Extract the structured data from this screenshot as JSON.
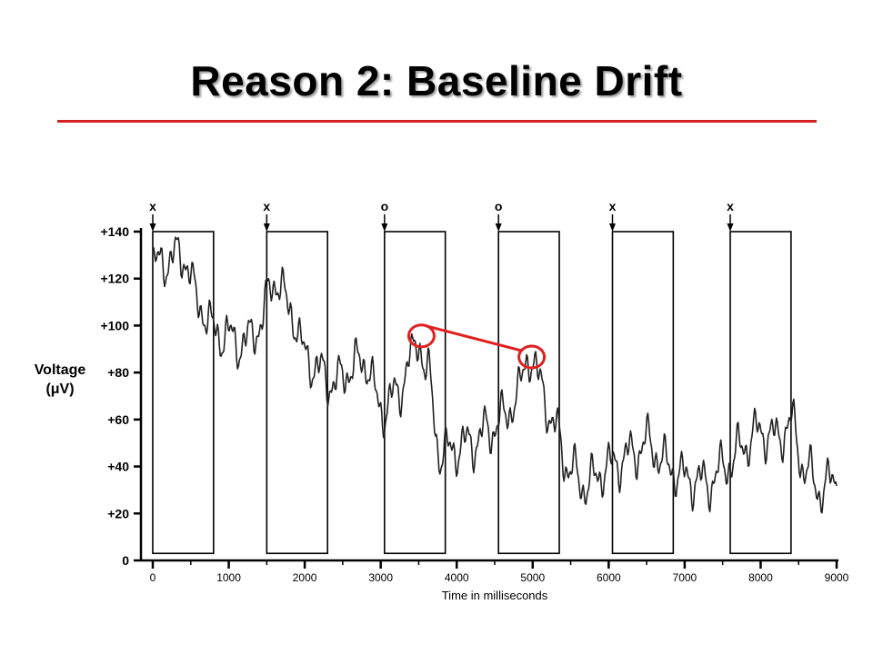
{
  "slide": {
    "title": "Reason 2: Baseline Drift",
    "accent_color": "#d21f1f"
  },
  "chart_data": {
    "type": "line",
    "xlabel": "Time in milliseconds",
    "ylabel_line1": "Voltage",
    "ylabel_line2": "(μV)",
    "xlim": [
      0,
      9000
    ],
    "ylim": [
      0,
      140
    ],
    "x_ticks": [
      0,
      1000,
      2000,
      3000,
      4000,
      5000,
      6000,
      7000,
      8000,
      9000
    ],
    "y_ticks": [
      {
        "value": 0,
        "label": "0"
      },
      {
        "value": 20,
        "label": "+20"
      },
      {
        "value": 40,
        "label": "+40"
      },
      {
        "value": 60,
        "label": "+60"
      },
      {
        "value": 80,
        "label": "+80"
      },
      {
        "value": 100,
        "label": "+100"
      },
      {
        "value": 120,
        "label": "+120"
      },
      {
        "value": 140,
        "label": "+140"
      }
    ],
    "stimulus_markers": [
      {
        "label": "x",
        "time": 0
      },
      {
        "label": "x",
        "time": 1500
      },
      {
        "label": "o",
        "time": 3050
      },
      {
        "label": "o",
        "time": 4550
      },
      {
        "label": "x",
        "time": 6050
      },
      {
        "label": "x",
        "time": 7600
      }
    ],
    "epochs": [
      {
        "start": 0,
        "end": 800
      },
      {
        "start": 1500,
        "end": 2300
      },
      {
        "start": 3050,
        "end": 3850
      },
      {
        "start": 4550,
        "end": 5350
      },
      {
        "start": 6050,
        "end": 6850
      },
      {
        "start": 7600,
        "end": 8400
      }
    ],
    "signal": {
      "color": "#222222",
      "x": [
        0,
        200,
        400,
        600,
        800,
        1000,
        1200,
        1400,
        1600,
        1800,
        2000,
        2200,
        2400,
        2600,
        2800,
        3000,
        3200,
        3400,
        3500,
        3600,
        3800,
        4000,
        4200,
        4400,
        4600,
        4800,
        4950,
        5100,
        5300,
        5500,
        5700,
        6000,
        6300,
        6500,
        6800,
        7000,
        7300,
        7600,
        7800,
        8000,
        8200,
        8400,
        8600,
        8800,
        9000
      ],
      "y": [
        125,
        128,
        130,
        110,
        98,
        95,
        92,
        100,
        120,
        108,
        88,
        80,
        75,
        82,
        85,
        64,
        70,
        85,
        95,
        80,
        45,
        48,
        50,
        55,
        60,
        70,
        88,
        75,
        55,
        38,
        32,
        40,
        45,
        50,
        40,
        35,
        33,
        42,
        50,
        55,
        52,
        58,
        38,
        30,
        35
      ]
    },
    "highlights": [
      {
        "time": 3500,
        "value": 96
      },
      {
        "time": 4950,
        "value": 87
      }
    ],
    "highlight_color": "#e02020"
  }
}
